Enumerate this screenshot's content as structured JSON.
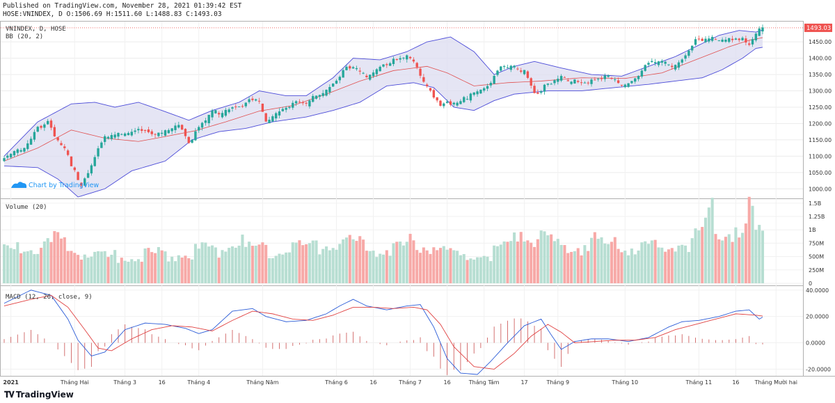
{
  "header": {
    "published": "Published on TradingView.com, November 28, 2021 01:39:42 EST",
    "symbol_line": "HOSE:VNINDEX, D O:1506.69 H:1511.60 L:1488.83 C:1493.03"
  },
  "footer": {
    "brand": "TradingView"
  },
  "watermark": "Chart by TradingView",
  "colors": {
    "up": "#26a69a",
    "down": "#ef5350",
    "up_fill": "#b7ded2",
    "down_fill": "#f7a9a7",
    "band_fill": "#dcdcf0",
    "band_line": "#4b4bd8",
    "basis": "#e05050",
    "macd": "#2a5bd7",
    "signal": "#e04040",
    "hist": "#c33a3a"
  },
  "chart_data": [
    {
      "type": "candlestick",
      "legend": [
        "VNINDEX, D, HOSE",
        "BB (20, 2)"
      ],
      "last_price": "1493.03",
      "ylim": [
        975,
        1510
      ],
      "y_ticks": [
        "1000.00",
        "1050.00",
        "1100.00",
        "1150.00",
        "1200.00",
        "1250.00",
        "1300.00",
        "1350.00",
        "1400.00",
        "1450.00"
      ],
      "x_ticks": [
        {
          "label": "2021",
          "i": 2,
          "bold": true
        },
        {
          "label": "Tháng Hai",
          "i": 21
        },
        {
          "label": "Tháng 3",
          "i": 36
        },
        {
          "label": "16",
          "i": 47
        },
        {
          "label": "Tháng 4",
          "i": 58
        },
        {
          "label": "Tháng Năm",
          "i": 77
        },
        {
          "label": "Tháng 6",
          "i": 99
        },
        {
          "label": "16",
          "i": 110
        },
        {
          "label": "Tháng 7",
          "i": 121
        },
        {
          "label": "16",
          "i": 132
        },
        {
          "label": "Tháng Tám",
          "i": 143
        },
        {
          "label": "17",
          "i": 155
        },
        {
          "label": "Tháng 9",
          "i": 165
        },
        {
          "label": "Tháng 10",
          "i": 185
        },
        {
          "label": "Tháng 11",
          "i": 207
        },
        {
          "label": "16",
          "i": 218
        },
        {
          "label": "Tháng Mười hai",
          "i": 230
        }
      ],
      "close_keyframes": [
        [
          0,
          1090
        ],
        [
          6,
          1140
        ],
        [
          10,
          1195
        ],
        [
          13,
          1205
        ],
        [
          15,
          1165
        ],
        [
          19,
          1105
        ],
        [
          23,
          1020
        ],
        [
          26,
          1080
        ],
        [
          30,
          1160
        ],
        [
          36,
          1180
        ],
        [
          40,
          1190
        ],
        [
          44,
          1165
        ],
        [
          48,
          1180
        ],
        [
          52,
          1205
        ],
        [
          55,
          1150
        ],
        [
          58,
          1185
        ],
        [
          62,
          1235
        ],
        [
          66,
          1250
        ],
        [
          70,
          1260
        ],
        [
          74,
          1275
        ],
        [
          76,
          1265
        ],
        [
          78,
          1210
        ],
        [
          82,
          1250
        ],
        [
          86,
          1268
        ],
        [
          90,
          1265
        ],
        [
          94,
          1298
        ],
        [
          98,
          1330
        ],
        [
          102,
          1375
        ],
        [
          105,
          1370
        ],
        [
          108,
          1345
        ],
        [
          112,
          1385
        ],
        [
          116,
          1395
        ],
        [
          120,
          1410
        ],
        [
          123,
          1375
        ],
        [
          126,
          1320
        ],
        [
          130,
          1265
        ],
        [
          134,
          1260
        ],
        [
          137,
          1280
        ],
        [
          140,
          1305
        ],
        [
          144,
          1325
        ],
        [
          148,
          1375
        ],
        [
          152,
          1375
        ],
        [
          155,
          1370
        ],
        [
          158,
          1300
        ],
        [
          162,
          1320
        ],
        [
          166,
          1345
        ],
        [
          170,
          1340
        ],
        [
          175,
          1330
        ],
        [
          180,
          1345
        ],
        [
          184,
          1325
        ],
        [
          188,
          1345
        ],
        [
          192,
          1385
        ],
        [
          196,
          1395
        ],
        [
          200,
          1385
        ],
        [
          203,
          1415
        ],
        [
          206,
          1455
        ],
        [
          210,
          1460
        ],
        [
          214,
          1465
        ],
        [
          218,
          1470
        ],
        [
          222,
          1445
        ],
        [
          224,
          1480
        ],
        [
          226,
          1493
        ]
      ],
      "bb_upper_keyframes": [
        [
          0,
          1100
        ],
        [
          10,
          1205
        ],
        [
          20,
          1260
        ],
        [
          27,
          1265
        ],
        [
          33,
          1250
        ],
        [
          40,
          1265
        ],
        [
          47,
          1240
        ],
        [
          55,
          1210
        ],
        [
          62,
          1240
        ],
        [
          70,
          1265
        ],
        [
          76,
          1300
        ],
        [
          84,
          1285
        ],
        [
          90,
          1285
        ],
        [
          98,
          1340
        ],
        [
          104,
          1400
        ],
        [
          112,
          1395
        ],
        [
          120,
          1420
        ],
        [
          126,
          1450
        ],
        [
          133,
          1465
        ],
        [
          140,
          1420
        ],
        [
          146,
          1350
        ],
        [
          152,
          1375
        ],
        [
          158,
          1390
        ],
        [
          166,
          1370
        ],
        [
          175,
          1350
        ],
        [
          184,
          1345
        ],
        [
          192,
          1375
        ],
        [
          200,
          1405
        ],
        [
          207,
          1440
        ],
        [
          213,
          1470
        ],
        [
          219,
          1485
        ],
        [
          224,
          1480
        ],
        [
          227,
          1490
        ]
      ],
      "bb_basis_keyframes": [
        [
          0,
          1085
        ],
        [
          10,
          1125
        ],
        [
          20,
          1180
        ],
        [
          30,
          1155
        ],
        [
          40,
          1145
        ],
        [
          48,
          1160
        ],
        [
          57,
          1178
        ],
        [
          66,
          1205
        ],
        [
          76,
          1238
        ],
        [
          86,
          1255
        ],
        [
          96,
          1290
        ],
        [
          106,
          1330
        ],
        [
          116,
          1362
        ],
        [
          126,
          1375
        ],
        [
          132,
          1355
        ],
        [
          140,
          1315
        ],
        [
          150,
          1325
        ],
        [
          160,
          1330
        ],
        [
          172,
          1340
        ],
        [
          185,
          1338
        ],
        [
          196,
          1355
        ],
        [
          206,
          1395
        ],
        [
          216,
          1435
        ],
        [
          222,
          1455
        ],
        [
          227,
          1465
        ]
      ],
      "bb_lower_keyframes": [
        [
          0,
          1070
        ],
        [
          10,
          1065
        ],
        [
          16,
          1030
        ],
        [
          22,
          975
        ],
        [
          30,
          1000
        ],
        [
          38,
          1055
        ],
        [
          48,
          1085
        ],
        [
          56,
          1150
        ],
        [
          64,
          1175
        ],
        [
          72,
          1185
        ],
        [
          80,
          1205
        ],
        [
          90,
          1220
        ],
        [
          98,
          1240
        ],
        [
          106,
          1265
        ],
        [
          114,
          1315
        ],
        [
          122,
          1325
        ],
        [
          128,
          1310
        ],
        [
          134,
          1250
        ],
        [
          140,
          1240
        ],
        [
          146,
          1270
        ],
        [
          152,
          1290
        ],
        [
          162,
          1300
        ],
        [
          172,
          1300
        ],
        [
          182,
          1310
        ],
        [
          192,
          1320
        ],
        [
          200,
          1330
        ],
        [
          208,
          1340
        ],
        [
          214,
          1365
        ],
        [
          220,
          1400
        ],
        [
          224,
          1430
        ],
        [
          227,
          1435
        ]
      ]
    },
    {
      "type": "bar",
      "legend": "Volume (20)",
      "ylim": [
        0,
        1550
      ],
      "y_ticks": [
        "0",
        "250M",
        "500M",
        "750M",
        "1B",
        "1.25B",
        "1.5B"
      ],
      "volume_keyframes": [
        [
          0,
          680
        ],
        [
          10,
          720
        ],
        [
          15,
          900
        ],
        [
          20,
          690
        ],
        [
          25,
          620
        ],
        [
          28,
          550
        ],
        [
          35,
          560
        ],
        [
          45,
          620
        ],
        [
          55,
          640
        ],
        [
          60,
          700
        ],
        [
          65,
          720
        ],
        [
          68,
          980
        ],
        [
          72,
          760
        ],
        [
          80,
          720
        ],
        [
          90,
          740
        ],
        [
          98,
          860
        ],
        [
          102,
          820
        ],
        [
          110,
          770
        ],
        [
          115,
          720
        ],
        [
          120,
          820
        ],
        [
          125,
          900
        ],
        [
          130,
          760
        ],
        [
          133,
          590
        ],
        [
          138,
          540
        ],
        [
          145,
          620
        ],
        [
          150,
          740
        ],
        [
          155,
          1220
        ],
        [
          160,
          900
        ],
        [
          165,
          800
        ],
        [
          170,
          760
        ],
        [
          175,
          870
        ],
        [
          180,
          820
        ],
        [
          185,
          760
        ],
        [
          190,
          720
        ],
        [
          195,
          740
        ],
        [
          200,
          780
        ],
        [
          205,
          900
        ],
        [
          208,
          1000
        ],
        [
          211,
          1500
        ],
        [
          213,
          1150
        ],
        [
          216,
          1120
        ],
        [
          218,
          1250
        ],
        [
          220,
          1000
        ],
        [
          222,
          1500
        ],
        [
          224,
          1100
        ],
        [
          226,
          1000
        ]
      ]
    },
    {
      "type": "line",
      "legend": "MACD (12, 26, close, 9)",
      "ylim": [
        -24,
        42
      ],
      "y_ticks": [
        "-20.0000",
        "0.0000",
        "20.0000",
        "40.0000"
      ],
      "macd_keyframes": [
        [
          0,
          30
        ],
        [
          8,
          40
        ],
        [
          14,
          36
        ],
        [
          19,
          18
        ],
        [
          22,
          2
        ],
        [
          26,
          -10
        ],
        [
          30,
          -7
        ],
        [
          36,
          10
        ],
        [
          42,
          15
        ],
        [
          48,
          14
        ],
        [
          54,
          11
        ],
        [
          58,
          7
        ],
        [
          62,
          10
        ],
        [
          68,
          24
        ],
        [
          74,
          26
        ],
        [
          78,
          20
        ],
        [
          84,
          16
        ],
        [
          90,
          17
        ],
        [
          96,
          22
        ],
        [
          100,
          28
        ],
        [
          104,
          33
        ],
        [
          108,
          28
        ],
        [
          114,
          25
        ],
        [
          120,
          28
        ],
        [
          124,
          29
        ],
        [
          128,
          12
        ],
        [
          132,
          -12
        ],
        [
          136,
          -23
        ],
        [
          141,
          -24
        ],
        [
          145,
          -14
        ],
        [
          150,
          0
        ],
        [
          155,
          13
        ],
        [
          160,
          18
        ],
        [
          163,
          6
        ],
        [
          166,
          -5
        ],
        [
          170,
          1
        ],
        [
          175,
          3
        ],
        [
          180,
          3
        ],
        [
          186,
          1
        ],
        [
          192,
          4
        ],
        [
          198,
          12
        ],
        [
          202,
          16
        ],
        [
          207,
          17
        ],
        [
          213,
          20
        ],
        [
          218,
          24
        ],
        [
          222,
          25
        ],
        [
          225,
          18
        ],
        [
          227,
          21
        ]
      ],
      "signal_keyframes": [
        [
          0,
          28
        ],
        [
          8,
          33
        ],
        [
          14,
          36
        ],
        [
          19,
          27
        ],
        [
          24,
          10
        ],
        [
          28,
          -4
        ],
        [
          32,
          -6
        ],
        [
          38,
          3
        ],
        [
          44,
          10
        ],
        [
          50,
          13
        ],
        [
          56,
          12
        ],
        [
          62,
          9
        ],
        [
          68,
          17
        ],
        [
          74,
          24
        ],
        [
          80,
          22
        ],
        [
          86,
          18
        ],
        [
          92,
          17
        ],
        [
          98,
          21
        ],
        [
          104,
          27
        ],
        [
          110,
          27
        ],
        [
          116,
          26
        ],
        [
          122,
          27
        ],
        [
          126,
          25
        ],
        [
          130,
          14
        ],
        [
          134,
          -3
        ],
        [
          140,
          -18
        ],
        [
          146,
          -20
        ],
        [
          152,
          -8
        ],
        [
          157,
          5
        ],
        [
          162,
          14
        ],
        [
          166,
          8
        ],
        [
          170,
          0
        ],
        [
          176,
          1
        ],
        [
          182,
          2
        ],
        [
          188,
          2
        ],
        [
          194,
          4
        ],
        [
          200,
          10
        ],
        [
          206,
          14
        ],
        [
          212,
          18
        ],
        [
          218,
          22
        ],
        [
          224,
          21
        ],
        [
          227,
          20
        ]
      ]
    }
  ]
}
